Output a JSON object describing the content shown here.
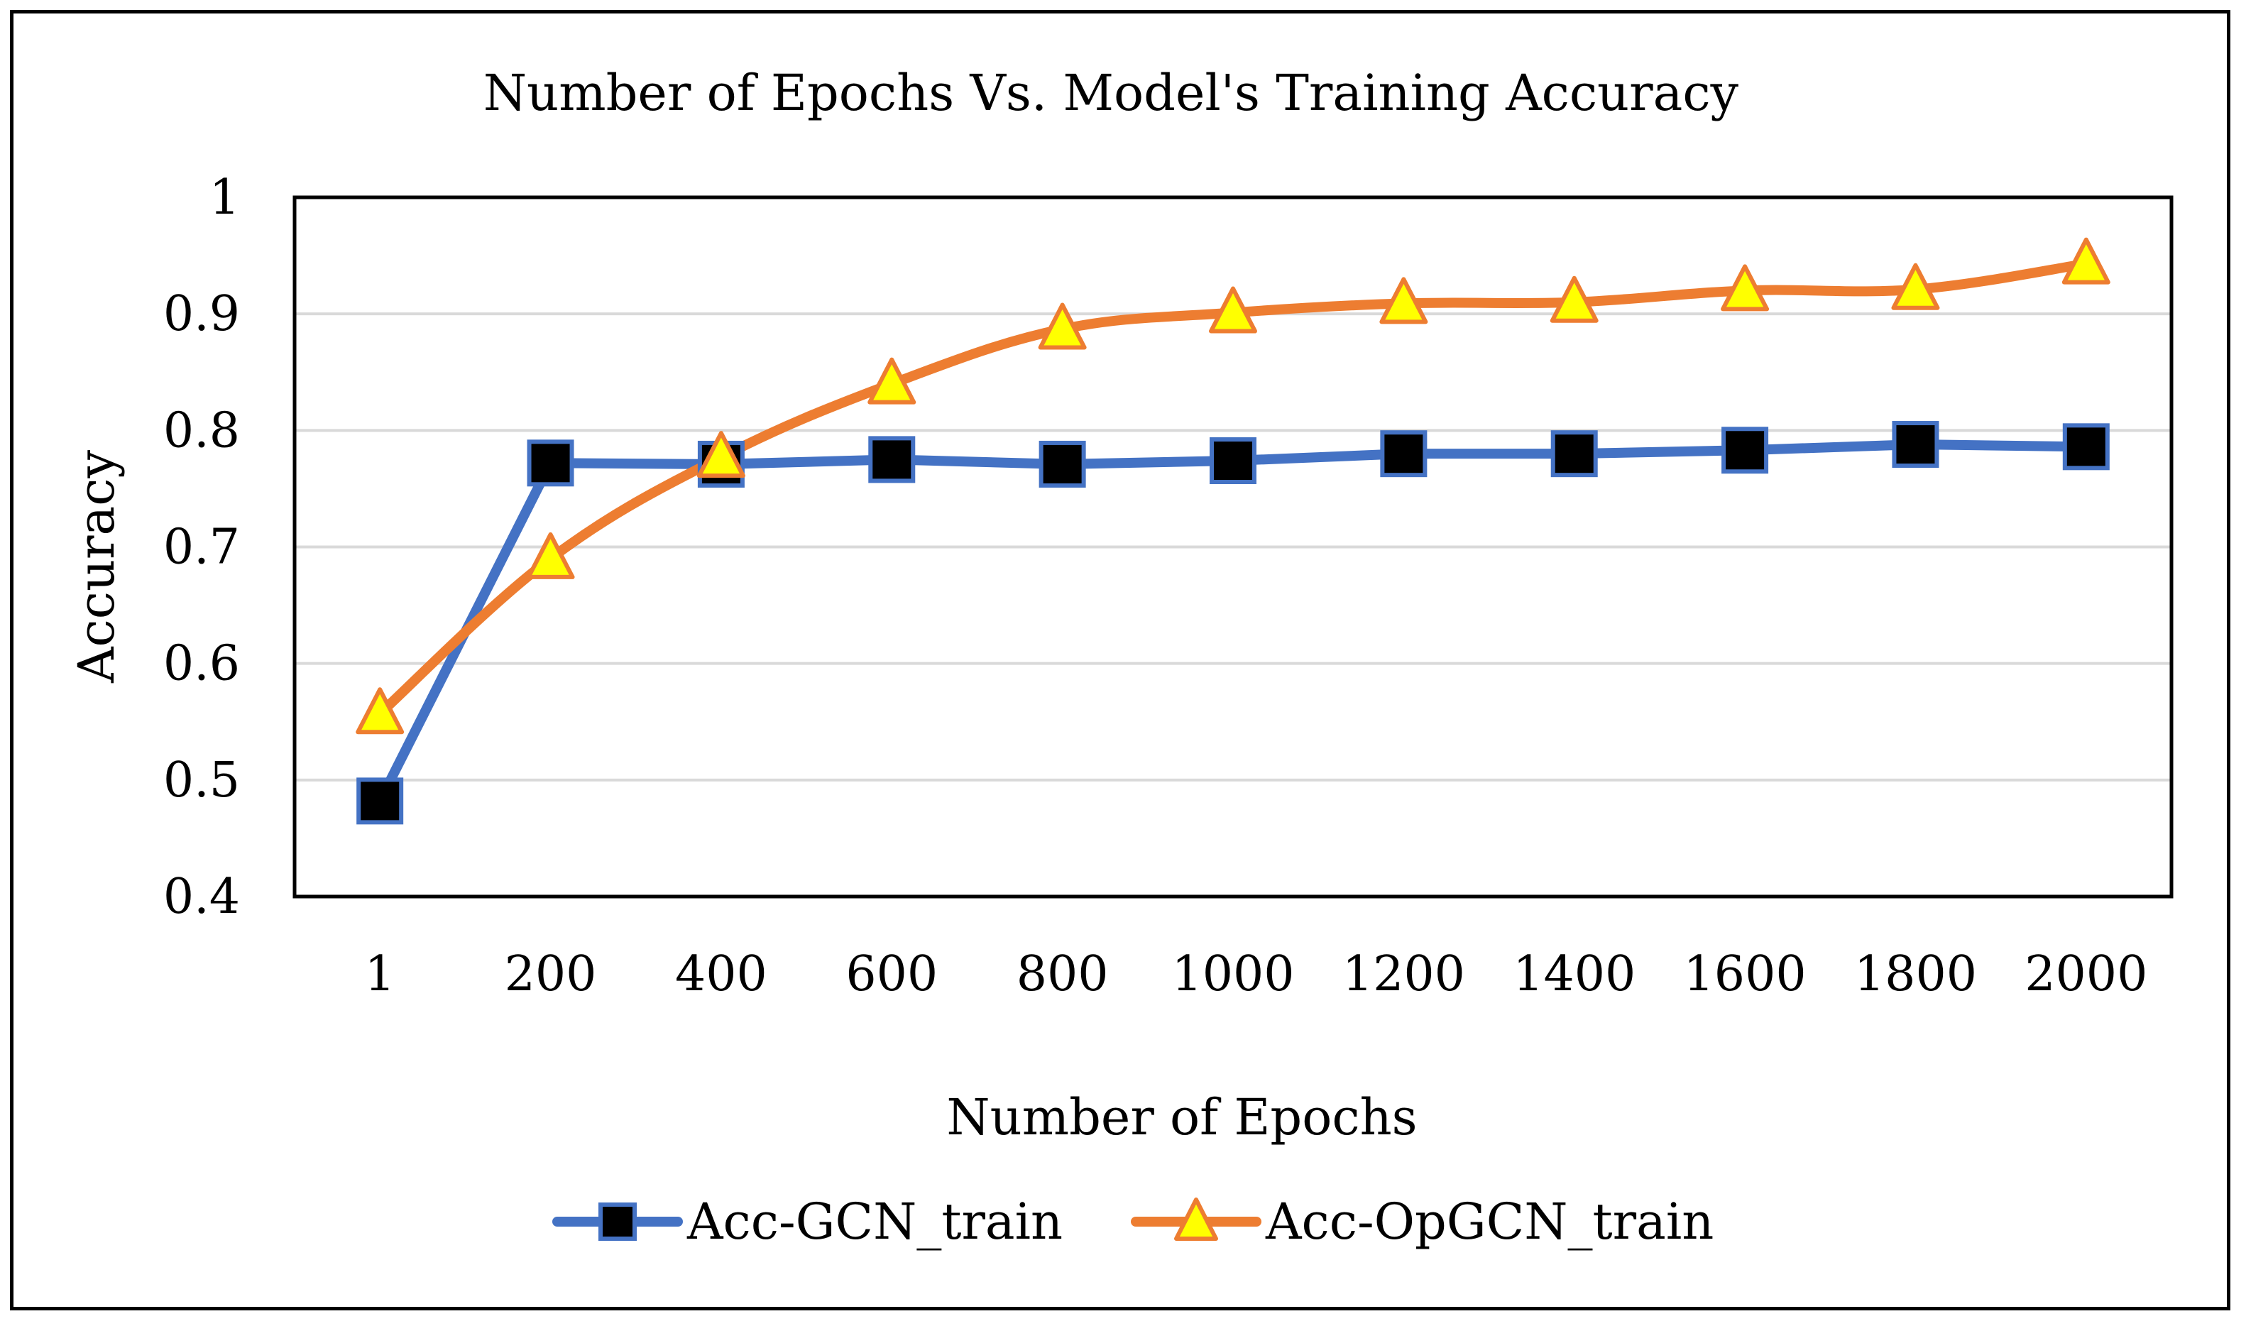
{
  "chart_data": {
    "type": "line",
    "title": "Number of Epochs Vs. Model's Training Accuracy",
    "xlabel": "Number of Epochs",
    "ylabel": "Accuracy",
    "categories": [
      "1",
      "200",
      "400",
      "600",
      "800",
      "1000",
      "1200",
      "1400",
      "1600",
      "1800",
      "2000"
    ],
    "ylim": [
      0.4,
      1
    ],
    "yticks": [
      0.4,
      0.5,
      0.6,
      0.7,
      0.8,
      0.9,
      1
    ],
    "ytick_labels": [
      "0.4",
      "0.5",
      "0.6",
      "0.7",
      "0.8",
      "0.9",
      "1"
    ],
    "grid": true,
    "legend_position": "bottom",
    "series": [
      {
        "name": "Acc-GCN_train",
        "marker": "square",
        "color": "#4472c4",
        "marker_fill": "#000000",
        "values": [
          0.482,
          0.772,
          0.771,
          0.775,
          0.771,
          0.774,
          0.78,
          0.78,
          0.783,
          0.788,
          0.786
        ]
      },
      {
        "name": "Acc-OpGCN_train",
        "marker": "triangle",
        "color": "#ed7d31",
        "marker_fill": "#ffff00",
        "values": [
          0.557,
          0.69,
          0.777,
          0.84,
          0.887,
          0.901,
          0.909,
          0.91,
          0.92,
          0.921,
          0.943
        ]
      }
    ]
  }
}
